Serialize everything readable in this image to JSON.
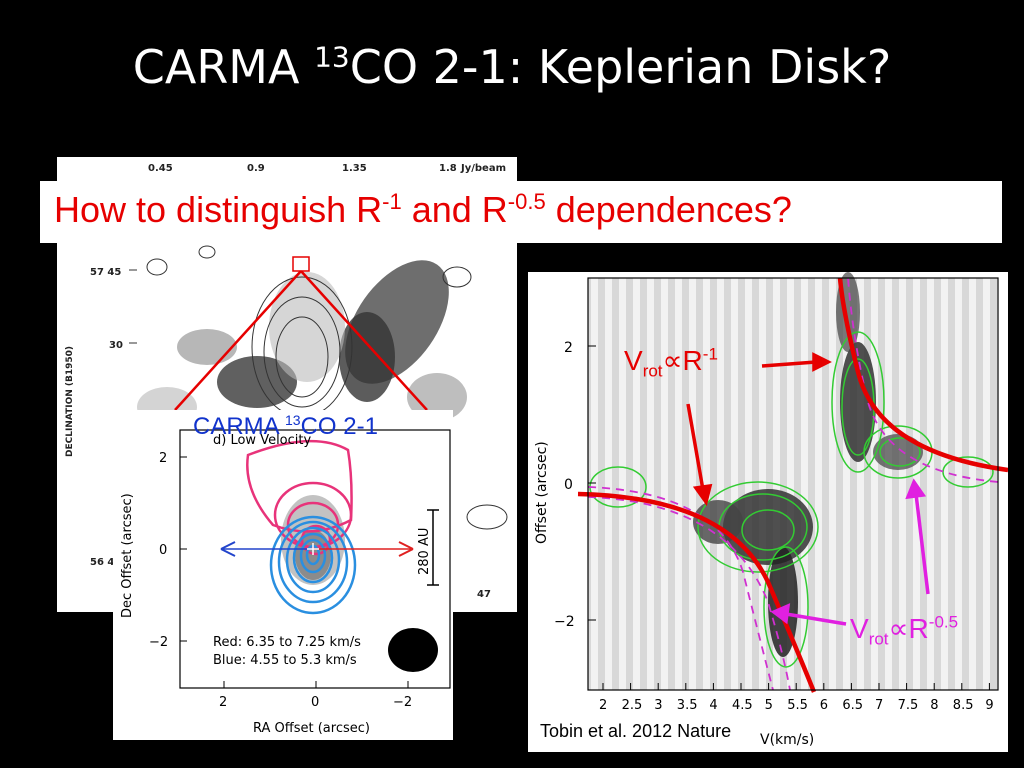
{
  "slide": {
    "title_prefix": "CARMA ",
    "title_superscript": "13",
    "title_suffix": "CO 2-1: Keplerian Disk?"
  },
  "question": {
    "part1": "How to distinguish R",
    "sup1": "-1",
    "part2": " and R",
    "sup2": "-0.5",
    "part3": " dependences?"
  },
  "background_map": {
    "colorbar_ticks": [
      "0.45",
      "0.9",
      "1.35",
      "1.8"
    ],
    "colorbar_unit": "Jy/beam",
    "dec_ticks": [
      "57 45",
      "30",
      "56 4"
    ],
    "ylabel": "DECLINATION (B1950)",
    "corner_tick": "47"
  },
  "inset": {
    "title_prefix": "CARMA ",
    "title_superscript": "13",
    "title_suffix": "CO 2-1",
    "panel_label": "d) Low Velocity",
    "xlabel": "RA Offset (arcsec)",
    "ylabel": "Dec Offset (arcsec)",
    "x_ticks": [
      "2",
      "0",
      "−2"
    ],
    "y_ticks": [
      "2",
      "0",
      "−2"
    ],
    "scale_label": "280 AU",
    "legend_red": "Red: 6.35 to 7.25 km/s",
    "legend_blue": "Blue: 4.55 to 5.3 km/s",
    "colors": {
      "red": "#e8337a",
      "blue": "#2a8fe0",
      "arrow_blue": "#2244cc",
      "arrow_red": "#e02020"
    }
  },
  "pv_diagram": {
    "ylabel": "Offset (arcsec)",
    "xlabel": "V(km/s)",
    "x_ticks": [
      "2",
      "2.5",
      "3",
      "3.5",
      "4",
      "4.5",
      "5",
      "5.5",
      "6",
      "6.5",
      "7",
      "7.5",
      "8",
      "8.5",
      "9"
    ],
    "y_ticks": [
      "2",
      "0",
      "−2"
    ],
    "citation": "Tobin et al. 2012 Nature",
    "colors": {
      "contour": "#33cc33",
      "kepler": "#e60000",
      "dashed": "#d030d0"
    }
  },
  "annotations": {
    "r1": {
      "v": "V",
      "sub": "rot",
      "prop": "∝",
      "r": "R",
      "sup": "-1"
    },
    "r05": {
      "v": "V",
      "sub": "rot",
      "prop": "∝",
      "r": "R",
      "sup": "-0.5"
    }
  }
}
